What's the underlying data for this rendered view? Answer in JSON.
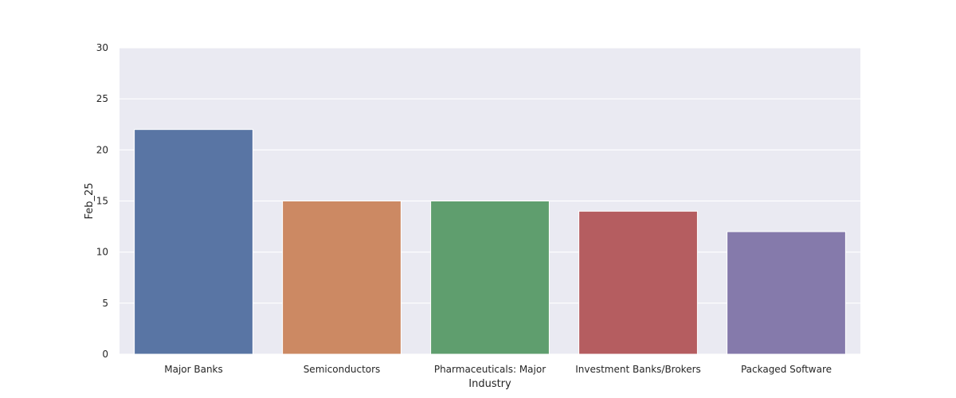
{
  "chart_data": {
    "type": "bar",
    "title": "",
    "xlabel": "Industry",
    "ylabel": "Feb_25",
    "categories": [
      "Major Banks",
      "Semiconductors",
      "Pharmaceuticals: Major",
      "Investment Banks/Brokers",
      "Packaged Software"
    ],
    "values": [
      22,
      15,
      15,
      14,
      12
    ],
    "ylim": [
      0,
      30
    ],
    "yticks": [
      "0",
      "5",
      "10",
      "15",
      "20",
      "25",
      "30"
    ],
    "grid": true,
    "legend": "none",
    "colors": [
      "#5975a4",
      "#cc8963",
      "#5f9e6e",
      "#b55d60",
      "#857aab"
    ],
    "background": "#eaeaf2",
    "gridline_color": "#ffffff"
  }
}
